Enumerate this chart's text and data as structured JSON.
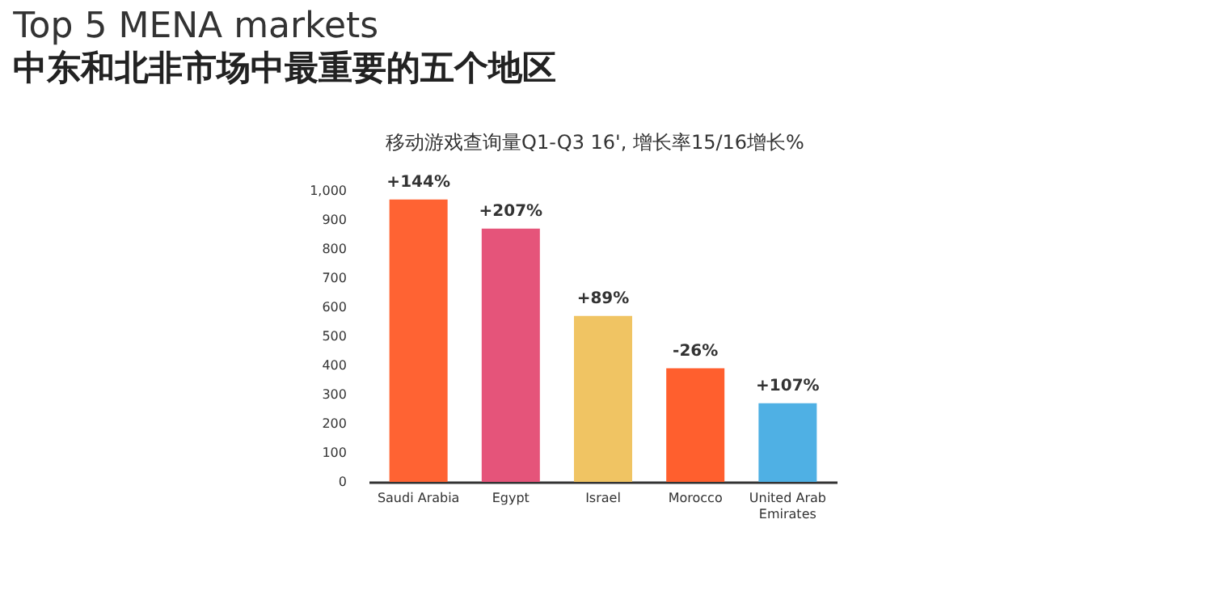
{
  "chart_data": {
    "type": "bar",
    "title": "Top 5 MENA markets",
    "subtitle": "中东和北非市场中最重要的五个地区",
    "annotations": [
      "移动游戏查询量Q1-Q3 16', 增长率15/16增长%",
      {
        "text": "+144%",
        "x": "Saudi Arabia",
        "y": 970
      },
      {
        "text": "+207%",
        "x": "Egypt",
        "y": 870
      },
      {
        "text": "+89%",
        "x": "Israel",
        "y": 570
      },
      {
        "text": "-26%",
        "x": "Morocco",
        "y": 390
      },
      {
        "text": "+107%",
        "x": "United Arab Emirates",
        "y": 270
      }
    ],
    "categories": [
      "Saudi Arabia",
      "Egypt",
      "Israel",
      "Morocco",
      "United Arab Emirates"
    ],
    "values": [
      970,
      870,
      570,
      390,
      270
    ],
    "colors": [
      "#ff6333",
      "#e5547a",
      "#f0c463",
      "#ff5f2e",
      "#4fb0e4"
    ],
    "ylim": [
      0,
      1000
    ],
    "yticks": [
      0,
      100,
      200,
      300,
      400,
      500,
      600,
      700,
      800,
      900,
      {
        "value": 1000,
        "label": "1,000"
      }
    ],
    "grid": false
  }
}
